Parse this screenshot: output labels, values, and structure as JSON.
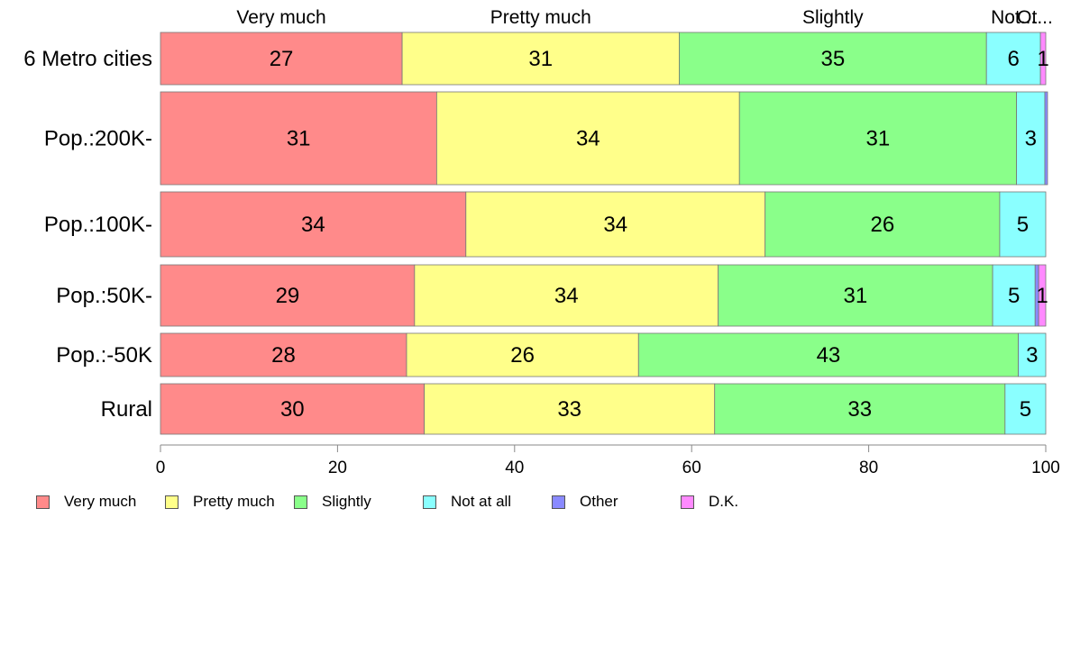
{
  "chart_data": {
    "type": "bar",
    "orientation": "horizontal",
    "stacked": true,
    "categories": [
      "6 Metro cities",
      "Pop.:200K-",
      "Pop.:100K-",
      "Pop.:50K-",
      "Pop.:-50K",
      "Rural"
    ],
    "series": [
      {
        "name": "Very much",
        "color": "#ff8a8a",
        "values": [
          27.3,
          31.2,
          34.5,
          28.7,
          27.8,
          29.8
        ]
      },
      {
        "name": "Pretty much",
        "color": "#ffff8a",
        "values": [
          31.3,
          34.2,
          33.8,
          34.3,
          26.2,
          32.8
        ]
      },
      {
        "name": "Slightly",
        "color": "#8aff8a",
        "values": [
          34.7,
          31.3,
          26.5,
          31.0,
          42.9,
          32.8
        ]
      },
      {
        "name": "Not at all",
        "color": "#8affff",
        "values": [
          6.1,
          3.2,
          5.2,
          4.8,
          3.1,
          4.6
        ]
      },
      {
        "name": "Other",
        "color": "#8a8aff",
        "values": [
          0.0,
          0.3,
          0.0,
          0.4,
          0.0,
          0.0
        ]
      },
      {
        "name": "D.K.",
        "color": "#ff8aff",
        "values": [
          0.6,
          0.0,
          0.0,
          0.8,
          0.0,
          0.0
        ]
      }
    ],
    "data_labels": [
      [
        "27",
        "31",
        "35",
        "6",
        "",
        "1"
      ],
      [
        "31",
        "34",
        "31",
        "3",
        "",
        ""
      ],
      [
        "34",
        "34",
        "26",
        "5",
        "",
        ""
      ],
      [
        "29",
        "34",
        "31",
        "5",
        "",
        "1"
      ],
      [
        "28",
        "26",
        "43",
        "3",
        "",
        ""
      ],
      [
        "30",
        "33",
        "33",
        "5",
        "",
        ""
      ]
    ],
    "top_labels": [
      "Very much",
      "Pretty much",
      "Slightly",
      "Not...",
      "Ot..."
    ],
    "xlim": [
      0,
      100
    ],
    "xticks": [
      "0",
      "20",
      "40",
      "60",
      "80",
      "100"
    ],
    "xlabel": "",
    "ylabel": "",
    "grid": false,
    "legend_position": "bottom-left"
  }
}
